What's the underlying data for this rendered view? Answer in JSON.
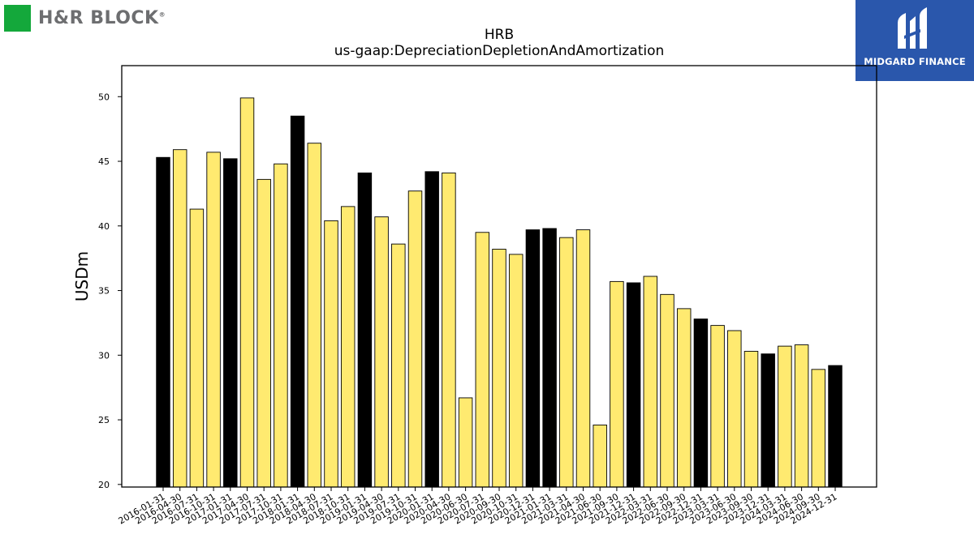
{
  "logo_left": {
    "text": "H&R BLOCK",
    "tm": "®",
    "square_color": "#14a83b",
    "text_color": "#6d6e70"
  },
  "logo_right": {
    "text": "MIDGARD FINANCE",
    "bg_color": "#2a57ac"
  },
  "chart_data": {
    "type": "bar",
    "title": "HRB",
    "subtitle": "us-gaap:DepreciationDepletionAndAmortization",
    "xlabel": "",
    "ylabel": "USDm",
    "ylim": [
      19.8,
      52.4
    ],
    "yticks": [
      20,
      25,
      30,
      35,
      40,
      45,
      50
    ],
    "grid": false,
    "colors": {
      "q4": "#000000",
      "other": "#ffea70",
      "edge": "#000000"
    },
    "categories": [
      "2016-01-31",
      "2016-04-30",
      "2016-07-31",
      "2016-10-31",
      "2017-01-31",
      "2017-04-30",
      "2017-07-31",
      "2017-10-31",
      "2018-01-31",
      "2018-04-30",
      "2018-07-31",
      "2018-10-31",
      "2019-01-31",
      "2019-04-30",
      "2019-07-31",
      "2019-10-31",
      "2020-01-31",
      "2020-04-30",
      "2020-06-30",
      "2020-07-31",
      "2020-09-30",
      "2020-10-31",
      "2020-12-31",
      "2021-01-31",
      "2021-03-31",
      "2021-04-30",
      "2021-06-30",
      "2021-09-30",
      "2021-12-31",
      "2022-03-31",
      "2022-06-30",
      "2022-09-30",
      "2022-12-31",
      "2023-03-31",
      "2023-06-30",
      "2023-09-30",
      "2023-12-31",
      "2024-03-31",
      "2024-06-30",
      "2024-09-30",
      "2024-12-31"
    ],
    "values": [
      45.3,
      45.9,
      41.3,
      45.7,
      45.2,
      49.9,
      43.6,
      44.8,
      48.5,
      46.4,
      40.4,
      41.5,
      44.1,
      40.7,
      38.6,
      42.7,
      44.2,
      44.1,
      26.7,
      39.5,
      38.2,
      37.8,
      39.7,
      39.8,
      39.1,
      39.7,
      24.6,
      35.7,
      35.6,
      36.1,
      34.7,
      33.6,
      32.8,
      32.3,
      31.9,
      30.3,
      30.1,
      30.7,
      30.8,
      28.9,
      29.2
    ],
    "highlight": [
      true,
      false,
      false,
      false,
      true,
      false,
      false,
      false,
      true,
      false,
      false,
      false,
      true,
      false,
      false,
      false,
      true,
      false,
      false,
      false,
      false,
      false,
      true,
      true,
      false,
      false,
      false,
      false,
      true,
      false,
      false,
      false,
      true,
      false,
      false,
      false,
      true,
      false,
      false,
      false,
      true
    ]
  }
}
